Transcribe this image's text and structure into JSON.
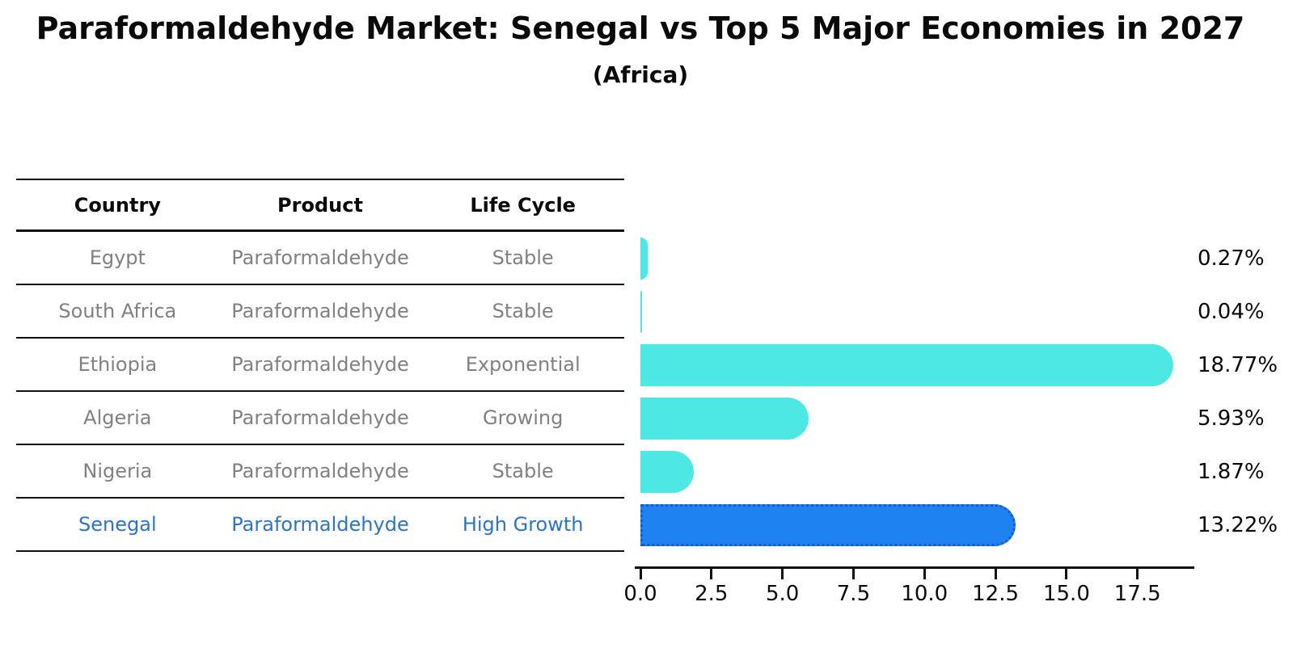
{
  "title": "Paraformaldehyde Market: Senegal vs Top 5 Major Economies in 2027",
  "subtitle": "(Africa)",
  "table": {
    "headers": [
      "Country",
      "Product",
      "Life Cycle"
    ],
    "rows": [
      {
        "country": "Egypt",
        "product": "Paraformaldehyde",
        "life_cycle": "Stable",
        "highlight": false
      },
      {
        "country": "South Africa",
        "product": "Paraformaldehyde",
        "life_cycle": "Stable",
        "highlight": false
      },
      {
        "country": "Ethiopia",
        "product": "Paraformaldehyde",
        "life_cycle": "Exponential",
        "highlight": false
      },
      {
        "country": "Algeria",
        "product": "Paraformaldehyde",
        "life_cycle": "Growing",
        "highlight": false
      },
      {
        "country": "Nigeria",
        "product": "Paraformaldehyde",
        "life_cycle": "Stable",
        "highlight": false
      },
      {
        "country": "Senegal",
        "product": "Paraformaldehyde",
        "life_cycle": "High Growth",
        "highlight": true
      }
    ]
  },
  "chart_data": {
    "type": "bar",
    "orientation": "horizontal",
    "title": "Paraformaldehyde Market: Senegal vs Top 5 Major Economies in 2027",
    "subtitle": "(Africa)",
    "categories": [
      "Egypt",
      "South Africa",
      "Ethiopia",
      "Algeria",
      "Nigeria",
      "Senegal"
    ],
    "values": [
      0.27,
      0.04,
      18.77,
      5.93,
      1.87,
      13.22
    ],
    "value_labels": [
      "0.27%",
      "0.04%",
      "18.77%",
      "5.93%",
      "1.87%",
      "13.22%"
    ],
    "x_ticks": [
      "0.0",
      "2.5",
      "5.0",
      "7.5",
      "10.0",
      "12.5",
      "15.0",
      "17.5"
    ],
    "xlim": [
      0,
      19.5
    ],
    "xlabel": "",
    "ylabel": "",
    "grid": false,
    "legend": "none",
    "highlight_index": 5,
    "highlight_category": "Senegal",
    "colors": {
      "bar": "#4DE8E4",
      "highlight_bar": "#1E83F0",
      "highlight_border": "#1A5ACF",
      "highlight_text": "#2B74C9",
      "row_text": "#818181",
      "axis": "#111111"
    }
  }
}
